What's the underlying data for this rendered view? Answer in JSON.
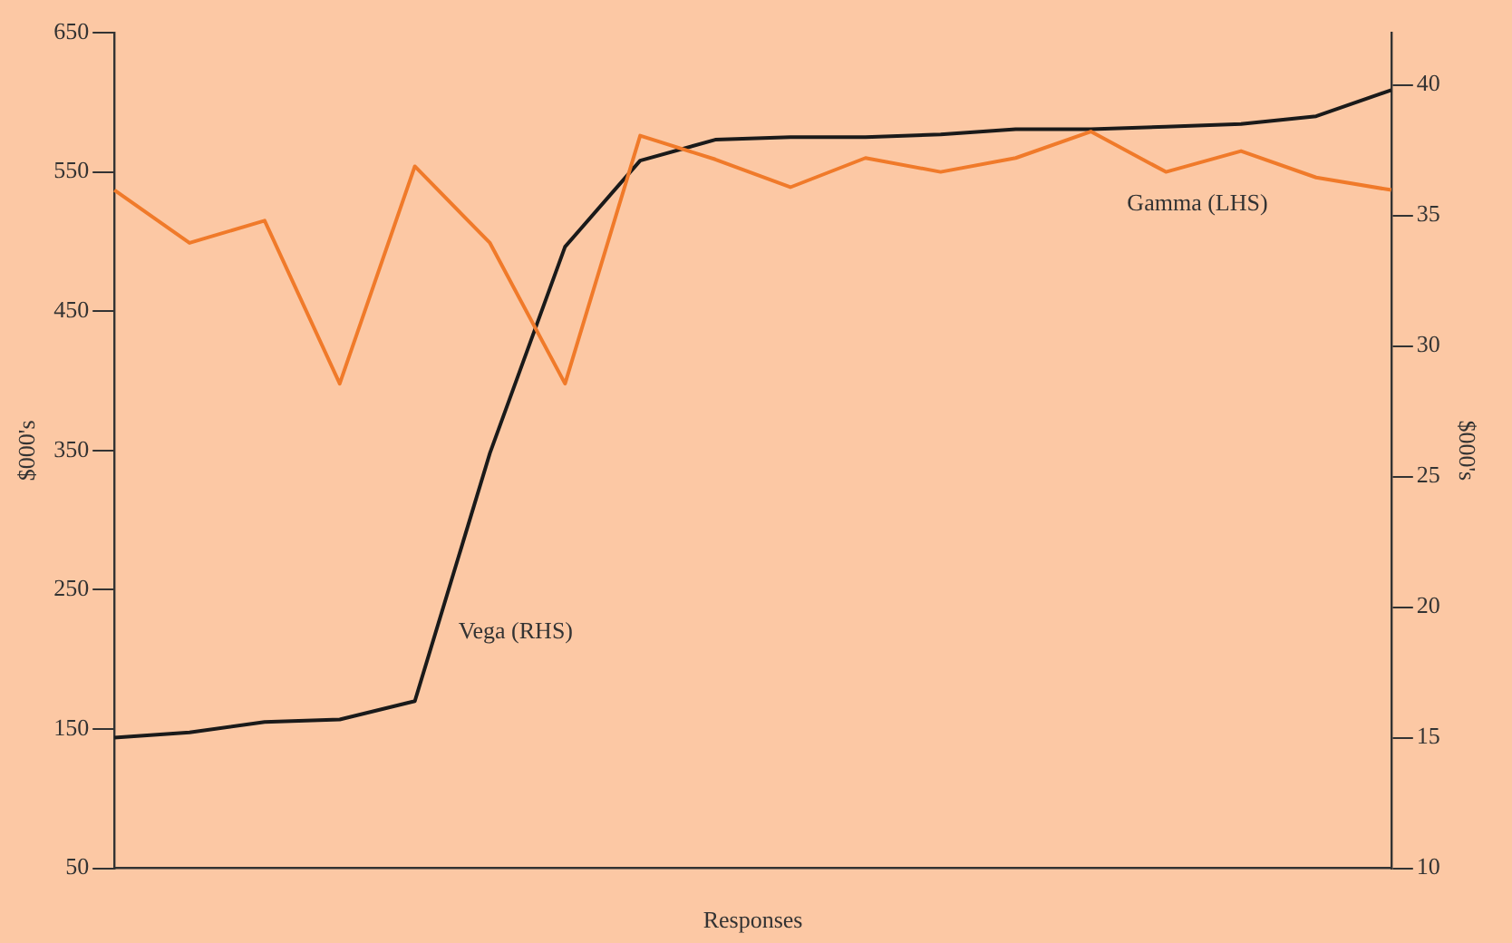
{
  "chart_data": {
    "type": "line",
    "xlabel": "Responses",
    "ylabel": "$000's",
    "y2label": "$000's",
    "categories": [
      null,
      null,
      null,
      null,
      null,
      null,
      null,
      null,
      null,
      null,
      null,
      null,
      null,
      null,
      null,
      null,
      null,
      null
    ],
    "series": [
      {
        "name": "Gamma (LHS)",
        "color": "#f07a2a",
        "values": [
          537,
          499,
          515,
          398,
          554,
          499,
          398,
          576,
          559,
          539,
          560,
          550,
          560,
          579,
          550,
          565,
          546,
          537
        ]
      },
      {
        "name": "Vega (RHS)",
        "color": "#1a1a1a",
        "axis": "y2",
        "values": [
          15.0,
          15.2,
          15.6,
          15.7,
          16.4,
          25.9,
          33.8,
          37.1,
          37.9,
          38.0,
          38.0,
          38.1,
          38.3,
          38.3,
          38.4,
          38.5,
          38.8,
          39.8
        ]
      }
    ],
    "ylim": [
      50,
      650
    ],
    "yticks": [
      50,
      150,
      250,
      350,
      450,
      550,
      650
    ],
    "y2lim": [
      10,
      42
    ],
    "y2ticks": [
      10,
      15,
      20,
      25,
      30,
      35,
      40
    ],
    "grid": false,
    "legend": false,
    "marker": "none",
    "line_style": "solid"
  }
}
